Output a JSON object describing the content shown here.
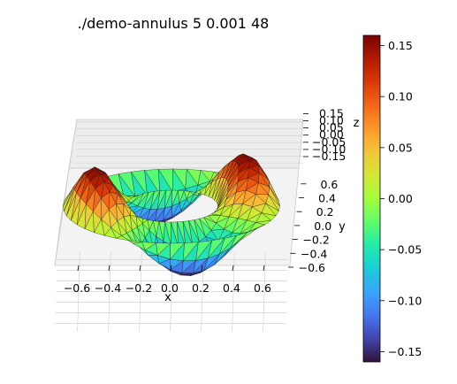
{
  "chart_data": {
    "type": "surface3d",
    "title": "./demo-annulus  5  0.001  48",
    "xlabel": "x",
    "ylabel": "y",
    "zlabel": "z",
    "xlim": [
      -0.7,
      0.7
    ],
    "ylim": [
      -0.7,
      0.7
    ],
    "zlim": [
      -0.16,
      0.16
    ],
    "x_ticks": [
      "−0.6",
      "−0.4",
      "−0.2",
      "0.0",
      "0.2",
      "0.4",
      "0.6"
    ],
    "y_ticks": [
      "−0.6",
      "−0.4",
      "−0.2",
      "0.0",
      "0.2",
      "0.4",
      "0.6"
    ],
    "z_ticks": [
      "−0.15",
      "−0.10",
      "−0.05",
      "0.00",
      "0.05",
      "0.10",
      "0.15"
    ],
    "surface": {
      "domain": "annulus",
      "inner_radius": 0.3,
      "outer_radius": 0.7,
      "z_amplitude": 0.16,
      "angular_mode": 2,
      "mesh": "triangulated"
    },
    "colorbar": {
      "colormap": "turbo",
      "min": -0.16,
      "max": 0.16,
      "ticks": [
        "0.15",
        "0.10",
        "0.05",
        "0.00",
        "−0.05",
        "−0.10",
        "−0.15"
      ]
    },
    "grid": true
  }
}
